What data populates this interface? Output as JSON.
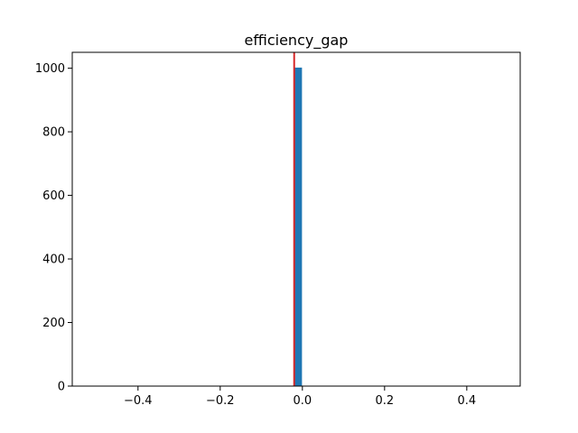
{
  "chart_data": {
    "type": "bar",
    "title": "efficiency_gap",
    "xlabel": "",
    "ylabel": "",
    "xlim": [
      -0.56,
      0.53
    ],
    "ylim": [
      0,
      1050
    ],
    "grid": false,
    "xticks": [
      -0.4,
      -0.2,
      0.0,
      0.2,
      0.4
    ],
    "xtick_labels": [
      "−0.4",
      "−0.2",
      "0.0",
      "0.2",
      "0.4"
    ],
    "yticks": [
      0,
      200,
      400,
      600,
      800,
      1000
    ],
    "ytick_labels": [
      "0",
      "200",
      "400",
      "600",
      "800",
      "1000"
    ],
    "bins": [
      {
        "x0": -0.021,
        "x1": -0.001,
        "count": 1002
      }
    ],
    "vlines": [
      {
        "x": -0.02,
        "color": "#d62728"
      }
    ],
    "bar_color": "#1f77b4"
  }
}
